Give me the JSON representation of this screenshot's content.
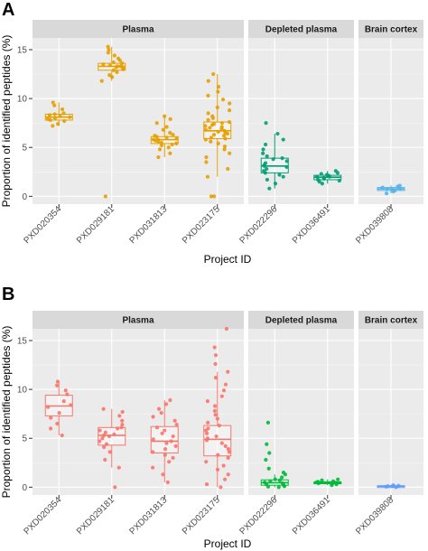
{
  "xlabel": "Project ID",
  "ylabel": "Proportion of identified peptides (%)",
  "chart_data": [
    {
      "type": "boxplot",
      "panel_label": "A",
      "xlabel": "Project ID",
      "ylabel": "Proportion of identified peptides (%)",
      "ylim": [
        -0.8,
        16.2
      ],
      "yticks": [
        0,
        5,
        10,
        15
      ],
      "grid": true,
      "facets": [
        {
          "label": "Plasma",
          "projects": [
            {
              "id": "PXD020354",
              "color": "#E69F00",
              "box": {
                "min": 7.2,
                "q1": 7.8,
                "median": 8.1,
                "q3": 8.4,
                "max": 9.6
              },
              "points": [
                7.2,
                7.4,
                7.7,
                7.8,
                7.9,
                8.0,
                8.1,
                8.2,
                8.3,
                8.4,
                8.5,
                8.9,
                9.3,
                9.6
              ]
            },
            {
              "id": "PXD029181",
              "color": "#E69F00",
              "box": {
                "min": 11.8,
                "q1": 12.9,
                "median": 13.3,
                "q3": 13.6,
                "max": 15.3
              },
              "points": [
                0.0,
                11.8,
                12.2,
                12.4,
                12.7,
                12.9,
                13.0,
                13.1,
                13.2,
                13.3,
                13.3,
                13.4,
                13.5,
                13.6,
                13.7,
                13.9,
                14.1,
                14.4,
                14.7,
                15.0,
                15.3
              ]
            },
            {
              "id": "PXD031813",
              "color": "#E69F00",
              "box": {
                "min": 4.0,
                "q1": 5.4,
                "median": 5.8,
                "q3": 6.1,
                "max": 8.2
              },
              "points": [
                4.0,
                4.4,
                4.8,
                5.0,
                5.2,
                5.3,
                5.4,
                5.5,
                5.6,
                5.7,
                5.8,
                5.8,
                5.9,
                6.0,
                6.1,
                6.2,
                6.3,
                6.5,
                6.8,
                7.1,
                7.5,
                7.9,
                8.2
              ]
            },
            {
              "id": "PXD023175",
              "color": "#E69F00",
              "box": {
                "min": 2.0,
                "q1": 5.9,
                "median": 6.7,
                "q3": 7.6,
                "max": 12.5
              },
              "points": [
                0.0,
                0.0,
                2.0,
                2.8,
                3.5,
                4.0,
                4.4,
                4.8,
                5.1,
                5.4,
                5.6,
                5.8,
                5.9,
                6.0,
                6.2,
                6.3,
                6.4,
                6.5,
                6.6,
                6.7,
                6.8,
                6.9,
                7.0,
                7.1,
                7.2,
                7.3,
                7.4,
                7.5,
                7.6,
                7.8,
                8.0,
                8.2,
                8.5,
                8.8,
                9.1,
                9.5,
                9.9,
                10.3,
                10.7,
                11.2,
                11.8,
                12.5
              ]
            }
          ]
        },
        {
          "label": "Depleted plasma",
          "projects": [
            {
              "id": "PXD022296",
              "color": "#009E73",
              "box": {
                "min": 0.8,
                "q1": 2.4,
                "median": 3.1,
                "q3": 3.9,
                "max": 6.4
              },
              "points": [
                0.8,
                1.3,
                1.7,
                2.0,
                2.2,
                2.4,
                2.6,
                2.8,
                3.0,
                3.1,
                3.2,
                3.4,
                3.6,
                3.8,
                3.9,
                4.1,
                4.4,
                4.8,
                5.3,
                5.8,
                6.4,
                7.5
              ]
            },
            {
              "id": "PXD036491",
              "color": "#009E73",
              "box": {
                "min": 1.3,
                "q1": 1.7,
                "median": 1.95,
                "q3": 2.15,
                "max": 2.6
              },
              "points": [
                1.3,
                1.5,
                1.6,
                1.7,
                1.8,
                1.9,
                2.0,
                2.0,
                2.1,
                2.2,
                2.3,
                2.4,
                2.6
              ]
            }
          ]
        },
        {
          "label": "Brain cortex",
          "projects": [
            {
              "id": "PXD039808",
              "color": "#56B4E9",
              "box": {
                "min": 0.3,
                "q1": 0.6,
                "median": 0.75,
                "q3": 0.9,
                "max": 1.1
              },
              "points": [
                0.3,
                0.5,
                0.6,
                0.7,
                0.75,
                0.8,
                0.9,
                1.0,
                1.1
              ]
            }
          ]
        }
      ]
    },
    {
      "type": "boxplot",
      "panel_label": "B",
      "xlabel": "Project ID",
      "ylabel": "Proportion of identified peptides (%)",
      "ylim": [
        -0.8,
        16.2
      ],
      "yticks": [
        0,
        5,
        10,
        15
      ],
      "grid": true,
      "facets": [
        {
          "label": "Plasma",
          "projects": [
            {
              "id": "PXD020354",
              "color": "#F8766D",
              "box": {
                "min": 5.3,
                "q1": 7.3,
                "median": 8.3,
                "q3": 9.4,
                "max": 10.8
              },
              "points": [
                5.3,
                6.0,
                6.5,
                7.1,
                7.6,
                8.2,
                8.4,
                8.8,
                9.5,
                9.9,
                10.4,
                10.8
              ]
            },
            {
              "id": "PXD029181",
              "color": "#F8766D",
              "box": {
                "min": 2.0,
                "q1": 4.3,
                "median": 5.3,
                "q3": 6.1,
                "max": 8.0
              },
              "points": [
                0.0,
                2.0,
                2.8,
                3.6,
                4.1,
                4.4,
                4.7,
                5.0,
                5.2,
                5.3,
                5.4,
                5.6,
                5.8,
                6.0,
                6.1,
                6.4,
                6.8,
                7.3,
                7.7,
                8.0
              ]
            },
            {
              "id": "PXD031813",
              "color": "#F8766D",
              "box": {
                "min": 0.5,
                "q1": 3.5,
                "median": 4.7,
                "q3": 6.2,
                "max": 8.9
              },
              "points": [
                0.5,
                1.3,
                2.0,
                2.6,
                3.0,
                3.3,
                3.6,
                3.9,
                4.2,
                4.5,
                4.7,
                4.9,
                5.2,
                5.5,
                5.8,
                6.1,
                6.4,
                6.8,
                7.2,
                7.6,
                8.0,
                8.5,
                8.9
              ]
            },
            {
              "id": "PXD023175",
              "color": "#F8766D",
              "box": {
                "min": 0.0,
                "q1": 3.2,
                "median": 4.9,
                "q3": 6.3,
                "max": 11.8
              },
              "points": [
                0.0,
                0.3,
                0.8,
                1.3,
                1.8,
                2.2,
                2.6,
                3.0,
                3.3,
                3.6,
                3.9,
                4.2,
                4.5,
                4.8,
                5.0,
                5.2,
                5.5,
                5.8,
                6.0,
                6.3,
                6.6,
                7.0,
                7.4,
                7.8,
                8.3,
                8.8,
                9.3,
                9.9,
                10.5,
                11.2,
                11.8,
                12.6,
                13.5,
                14.3,
                16.2
              ]
            }
          ]
        },
        {
          "label": "Depleted plasma",
          "projects": [
            {
              "id": "PXD022296",
              "color": "#00BA38",
              "box": {
                "min": 0.0,
                "q1": 0.2,
                "median": 0.45,
                "q3": 0.75,
                "max": 1.3
              },
              "points": [
                0.0,
                0.05,
                0.1,
                0.2,
                0.3,
                0.4,
                0.5,
                0.6,
                0.7,
                0.8,
                1.0,
                1.3,
                1.5,
                1.9,
                2.8,
                3.5,
                4.4,
                6.6
              ]
            },
            {
              "id": "PXD036491",
              "color": "#00BA38",
              "box": {
                "min": 0.2,
                "q1": 0.35,
                "median": 0.45,
                "q3": 0.55,
                "max": 0.8
              },
              "points": [
                0.2,
                0.3,
                0.35,
                0.4,
                0.45,
                0.5,
                0.55,
                0.6,
                0.7,
                0.8
              ]
            }
          ]
        },
        {
          "label": "Brain cortex",
          "projects": [
            {
              "id": "PXD039808",
              "color": "#619CFF",
              "box": {
                "min": 0.0,
                "q1": 0.05,
                "median": 0.1,
                "q3": 0.15,
                "max": 0.2
              },
              "points": [
                0.0,
                0.05,
                0.1,
                0.12,
                0.15,
                0.2
              ]
            }
          ]
        }
      ]
    }
  ]
}
